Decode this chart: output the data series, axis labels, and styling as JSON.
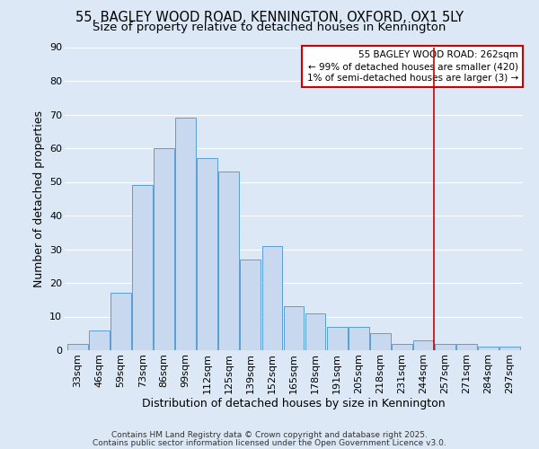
{
  "title1": "55, BAGLEY WOOD ROAD, KENNINGTON, OXFORD, OX1 5LY",
  "title2": "Size of property relative to detached houses in Kennington",
  "xlabel": "Distribution of detached houses by size in Kennington",
  "ylabel": "Number of detached properties",
  "bar_labels": [
    "33sqm",
    "46sqm",
    "59sqm",
    "73sqm",
    "86sqm",
    "99sqm",
    "112sqm",
    "125sqm",
    "139sqm",
    "152sqm",
    "165sqm",
    "178sqm",
    "191sqm",
    "205sqm",
    "218sqm",
    "231sqm",
    "244sqm",
    "257sqm",
    "271sqm",
    "284sqm",
    "297sqm"
  ],
  "bar_values": [
    2,
    6,
    17,
    49,
    60,
    69,
    57,
    53,
    27,
    31,
    13,
    11,
    7,
    7,
    5,
    2,
    3,
    2,
    2,
    1,
    1
  ],
  "bar_color": "#c8d8ef",
  "bar_edge_color": "#5a9fd4",
  "background_color": "#dce8f5",
  "grid_color": "#ffffff",
  "vline_color": "#cc0000",
  "vline_x_index": 16,
  "legend_title": "55 BAGLEY WOOD ROAD: 262sqm",
  "legend_line1": "← 99% of detached houses are smaller (420)",
  "legend_line2": "1% of semi-detached houses are larger (3) →",
  "legend_box_color": "#cc0000",
  "ylim": [
    0,
    90
  ],
  "yticks": [
    0,
    10,
    20,
    30,
    40,
    50,
    60,
    70,
    80,
    90
  ],
  "footer1": "Contains HM Land Registry data © Crown copyright and database right 2025.",
  "footer2": "Contains public sector information licensed under the Open Government Licence v3.0.",
  "title1_fontsize": 10.5,
  "title2_fontsize": 9.5,
  "axis_label_fontsize": 9,
  "tick_fontsize": 8,
  "legend_fontsize": 7.5,
  "footer_fontsize": 6.5
}
